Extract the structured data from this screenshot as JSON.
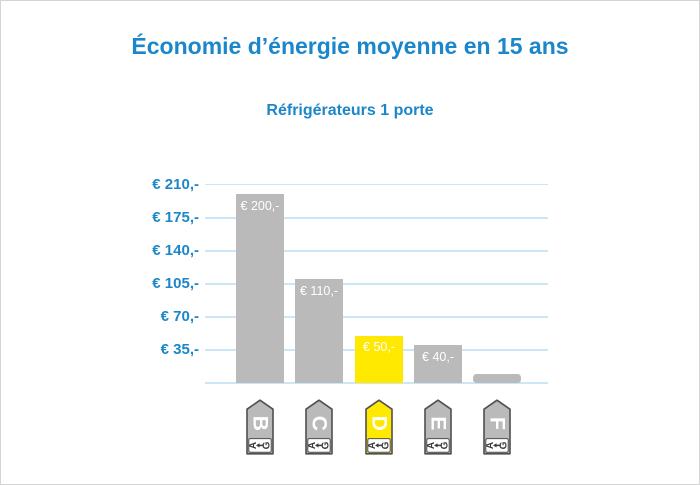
{
  "title": "Économie d’énergie moyenne en 15 ans",
  "subtitle": "Réfrigérateurs 1 porte",
  "colors": {
    "accent": "#1b87ca",
    "grid": "#cde6f5",
    "bar_gray": "#bababa",
    "bar_yellow": "#ffe900",
    "tag_outline": "#4f4f52",
    "bar_label_text": "#ffffff",
    "tag_letter_text": "#ffffff",
    "tag_scale_text": "#3c3c3c"
  },
  "chart_data": {
    "type": "bar",
    "categories": [
      "B",
      "C",
      "D",
      "E",
      "F"
    ],
    "values": [
      200,
      110,
      50,
      40,
      10
    ],
    "bar_labels": [
      "€ 200,-",
      "€ 110,-",
      "€ 50,-",
      "€ 40,-",
      ""
    ],
    "highlight_category": "D",
    "y_ticks": [
      {
        "value": 210,
        "label": "€ 210,-"
      },
      {
        "value": 175,
        "label": "€ 175,-"
      },
      {
        "value": 140,
        "label": "€ 140,-"
      },
      {
        "value": 105,
        "label": "€ 105,-"
      },
      {
        "value": 70,
        "label": "€ 70,-"
      },
      {
        "value": 35,
        "label": "€ 35,-"
      }
    ],
    "ylim": [
      0,
      210
    ],
    "grid": "on",
    "legend_position": "none",
    "tag_scale_letters": [
      "A",
      "G"
    ],
    "tag_scale_arrow": "←"
  }
}
